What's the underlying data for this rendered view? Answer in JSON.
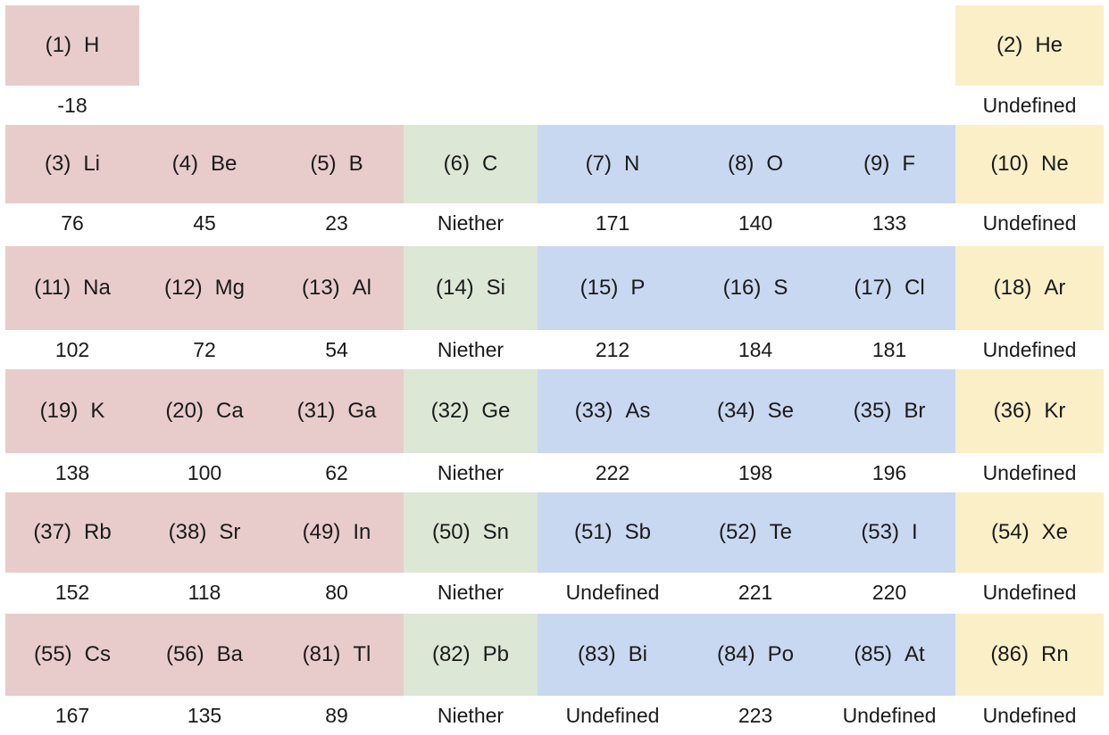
{
  "palette": {
    "metal": "#e8cccb",
    "metalloid": "#dce7d6",
    "nonmetal": "#c9d8f1",
    "noble": "#fbefc8",
    "background": "#ffffff",
    "text": "#1a1a1a"
  },
  "rows": [
    [
      {
        "num": "(1)",
        "sym": "H",
        "val": "-18",
        "cat": "metal",
        "col": 0
      },
      {
        "num": "(2)",
        "sym": "He",
        "val": "Undefined",
        "cat": "noble",
        "col": 7
      }
    ],
    [
      {
        "num": "(3)",
        "sym": "Li",
        "val": "76",
        "cat": "metal",
        "col": 0
      },
      {
        "num": "(4)",
        "sym": "Be",
        "val": "45",
        "cat": "metal",
        "col": 1
      },
      {
        "num": "(5)",
        "sym": "B",
        "val": "23",
        "cat": "metal",
        "col": 2
      },
      {
        "num": "(6)",
        "sym": "C",
        "val": "Niether",
        "cat": "metalloid",
        "col": 3
      },
      {
        "num": "(7)",
        "sym": "N",
        "val": "171",
        "cat": "nonmetal",
        "col": 4
      },
      {
        "num": "(8)",
        "sym": "O",
        "val": "140",
        "cat": "nonmetal",
        "col": 5
      },
      {
        "num": "(9)",
        "sym": "F",
        "val": "133",
        "cat": "nonmetal",
        "col": 6
      },
      {
        "num": "(10)",
        "sym": "Ne",
        "val": "Undefined",
        "cat": "noble",
        "col": 7
      }
    ],
    [
      {
        "num": "(11)",
        "sym": "Na",
        "val": "102",
        "cat": "metal",
        "col": 0
      },
      {
        "num": "(12)",
        "sym": "Mg",
        "val": "72",
        "cat": "metal",
        "col": 1
      },
      {
        "num": "(13)",
        "sym": "Al",
        "val": "54",
        "cat": "metal",
        "col": 2
      },
      {
        "num": "(14)",
        "sym": "Si",
        "val": "Niether",
        "cat": "metalloid",
        "col": 3
      },
      {
        "num": "(15)",
        "sym": "P",
        "val": "212",
        "cat": "nonmetal",
        "col": 4
      },
      {
        "num": "(16)",
        "sym": "S",
        "val": "184",
        "cat": "nonmetal",
        "col": 5
      },
      {
        "num": "(17)",
        "sym": "Cl",
        "val": "181",
        "cat": "nonmetal",
        "col": 6
      },
      {
        "num": "(18)",
        "sym": "Ar",
        "val": "Undefined",
        "cat": "noble",
        "col": 7
      }
    ],
    [
      {
        "num": "(19)",
        "sym": "K",
        "val": "138",
        "cat": "metal",
        "col": 0
      },
      {
        "num": "(20)",
        "sym": "Ca",
        "val": "100",
        "cat": "metal",
        "col": 1
      },
      {
        "num": "(31)",
        "sym": "Ga",
        "val": "62",
        "cat": "metal",
        "col": 2
      },
      {
        "num": "(32)",
        "sym": "Ge",
        "val": "Niether",
        "cat": "metalloid",
        "col": 3
      },
      {
        "num": "(33)",
        "sym": "As",
        "val": "222",
        "cat": "nonmetal",
        "col": 4
      },
      {
        "num": "(34)",
        "sym": "Se",
        "val": "198",
        "cat": "nonmetal",
        "col": 5
      },
      {
        "num": "(35)",
        "sym": "Br",
        "val": "196",
        "cat": "nonmetal",
        "col": 6
      },
      {
        "num": "(36)",
        "sym": "Kr",
        "val": "Undefined",
        "cat": "noble",
        "col": 7
      }
    ],
    [
      {
        "num": "(37)",
        "sym": "Rb",
        "val": "152",
        "cat": "metal",
        "col": 0
      },
      {
        "num": "(38)",
        "sym": "Sr",
        "val": "118",
        "cat": "metal",
        "col": 1
      },
      {
        "num": "(49)",
        "sym": "In",
        "val": "80",
        "cat": "metal",
        "col": 2
      },
      {
        "num": "(50)",
        "sym": "Sn",
        "val": "Niether",
        "cat": "metalloid",
        "col": 3
      },
      {
        "num": "(51)",
        "sym": "Sb",
        "val": "Undefined",
        "cat": "nonmetal",
        "col": 4
      },
      {
        "num": "(52)",
        "sym": "Te",
        "val": "221",
        "cat": "nonmetal",
        "col": 5
      },
      {
        "num": "(53)",
        "sym": "I",
        "val": "220",
        "cat": "nonmetal",
        "col": 6
      },
      {
        "num": "(54)",
        "sym": "Xe",
        "val": "Undefined",
        "cat": "noble",
        "col": 7
      }
    ],
    [
      {
        "num": "(55)",
        "sym": "Cs",
        "val": "167",
        "cat": "metal",
        "col": 0
      },
      {
        "num": "(56)",
        "sym": "Ba",
        "val": "135",
        "cat": "metal",
        "col": 1
      },
      {
        "num": "(81)",
        "sym": "Tl",
        "val": "89",
        "cat": "metal",
        "col": 2
      },
      {
        "num": "(82)",
        "sym": "Pb",
        "val": "Niether",
        "cat": "metalloid",
        "col": 3
      },
      {
        "num": "(83)",
        "sym": "Bi",
        "val": "Undefined",
        "cat": "nonmetal",
        "col": 4
      },
      {
        "num": "(84)",
        "sym": "Po",
        "val": "223",
        "cat": "nonmetal",
        "col": 5
      },
      {
        "num": "(85)",
        "sym": "At",
        "val": "Undefined",
        "cat": "nonmetal",
        "col": 6
      },
      {
        "num": "(86)",
        "sym": "Rn",
        "val": "Undefined",
        "cat": "noble",
        "col": 7
      }
    ]
  ]
}
